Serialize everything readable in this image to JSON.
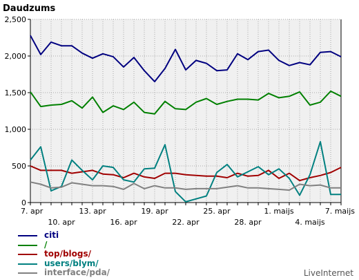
{
  "chart_data": {
    "type": "line",
    "title": "Daudzums",
    "ylim": [
      0,
      2500
    ],
    "yticks": [
      "0",
      "500",
      "1,000",
      "1,500",
      "2,000",
      "2,500"
    ],
    "ytick_values": [
      0,
      500,
      1000,
      1500,
      2000,
      2500
    ],
    "categories": [
      "7. apr",
      "8. apr",
      "9. apr",
      "10. apr",
      "11. apr",
      "12. apr",
      "13. apr",
      "14. apr",
      "15. apr",
      "16. apr",
      "17. apr",
      "18. apr",
      "19. apr",
      "20. apr",
      "21. apr",
      "22. apr",
      "23. apr",
      "24. apr",
      "25. apr",
      "26. apr",
      "27. apr",
      "28. apr",
      "29. apr",
      "30. apr",
      "1. maijs",
      "2. maijs",
      "3. maijs",
      "4. maijs",
      "5. maijs",
      "6. maijs",
      "7. maijs"
    ],
    "xtick_labels_top": [
      "7. apr",
      "13. apr",
      "19. apr",
      "25. apr",
      "1. maijs",
      "7. maijs"
    ],
    "xtick_labels_top_index": [
      0,
      6,
      12,
      18,
      24,
      30
    ],
    "xtick_labels_bottom": [
      "10. apr",
      "16. apr",
      "22. apr",
      "28. apr",
      "4. maijs"
    ],
    "xtick_labels_bottom_index": [
      3,
      9,
      15,
      21,
      27
    ],
    "grid": true,
    "series": [
      {
        "name": "citi",
        "color": "#000080",
        "values": [
          2280,
          2020,
          2190,
          2140,
          2140,
          2040,
          1970,
          2030,
          1990,
          1850,
          1980,
          1800,
          1650,
          1830,
          2090,
          1810,
          1940,
          1900,
          1800,
          1810,
          2030,
          1950,
          2060,
          2080,
          1940,
          1870,
          1910,
          1880,
          2050,
          2060,
          1990
        ]
      },
      {
        "name": "/",
        "color": "#008000",
        "values": [
          1510,
          1310,
          1330,
          1340,
          1390,
          1290,
          1440,
          1230,
          1320,
          1270,
          1370,
          1230,
          1210,
          1380,
          1280,
          1270,
          1370,
          1420,
          1340,
          1380,
          1410,
          1410,
          1400,
          1490,
          1430,
          1450,
          1510,
          1330,
          1370,
          1520,
          1450
        ]
      },
      {
        "name": "top/blogs/",
        "color": "#a00000",
        "values": [
          500,
          440,
          440,
          440,
          400,
          420,
          440,
          390,
          380,
          340,
          400,
          350,
          330,
          400,
          400,
          380,
          370,
          360,
          360,
          340,
          400,
          360,
          370,
          440,
          330,
          400,
          300,
          340,
          370,
          410,
          480
        ]
      },
      {
        "name": "users/blym/",
        "color": "#008080",
        "values": [
          580,
          760,
          160,
          220,
          580,
          440,
          310,
          500,
          480,
          310,
          280,
          460,
          470,
          790,
          150,
          10,
          50,
          90,
          410,
          520,
          350,
          420,
          490,
          380,
          460,
          330,
          100,
          380,
          830,
          110,
          110
        ]
      },
      {
        "name": "interface/pda/",
        "color": "#808080",
        "values": [
          280,
          250,
          200,
          210,
          270,
          250,
          230,
          230,
          220,
          180,
          260,
          190,
          230,
          200,
          200,
          180,
          190,
          190,
          190,
          210,
          230,
          200,
          200,
          190,
          180,
          170,
          250,
          230,
          240,
          200,
          200
        ]
      }
    ]
  },
  "brand": "LiveInternet"
}
